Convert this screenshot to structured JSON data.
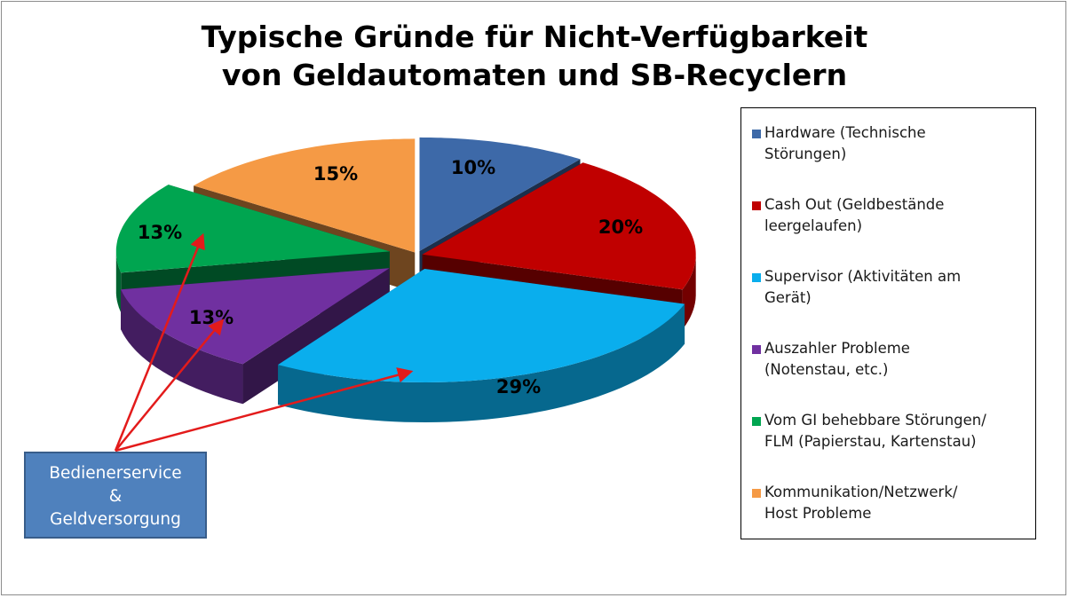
{
  "title": {
    "line1": "Typische Gründe für Nicht-Verfügbarkeit",
    "line2": "von Geldautomaten und SB-Recyclern"
  },
  "chart_data": {
    "type": "pie",
    "title": "Typische Gründe für Nicht-Verfügbarkeit von Geldautomaten und SB-Recyclern",
    "style": "3d-exploded",
    "legend_position": "right",
    "unit": "%",
    "slices": [
      {
        "label": "Hardware (Technische Störungen)",
        "legend_line1": "Hardware (Technische",
        "legend_line2": "Störungen)",
        "value": 10,
        "value_label": "10%",
        "color": "#3d69a8"
      },
      {
        "label": "Cash Out (Geldbestände leergelaufen)",
        "legend_line1": "Cash Out (Geldbestände",
        "legend_line2": "leergelaufen)",
        "value": 20,
        "value_label": "20%",
        "color": "#c00000"
      },
      {
        "label": "Supervisor (Aktivitäten am Gerät)",
        "legend_line1": "Supervisor (Aktivitäten am",
        "legend_line2": "Gerät)",
        "value": 29,
        "value_label": "29%",
        "color": "#0aaeed"
      },
      {
        "label": "Auszahler Probleme (Notenstau, etc.)",
        "legend_line1": "Auszahler Probleme",
        "legend_line2": "(Notenstau, etc.)",
        "value": 13,
        "value_label": "13%",
        "color": "#7030a0"
      },
      {
        "label": "Vom GI behebbare Störungen/ FLM (Papierstau, Kartenstau)",
        "legend_line1": "Vom GI behebbare Störungen/",
        "legend_line2": "FLM (Papierstau, Kartenstau)",
        "value": 13,
        "value_label": "13%",
        "color": "#00a550"
      },
      {
        "label": "Kommunikation/Netzwerk/ Host Probleme",
        "legend_line1": "Kommunikation/Netzwerk/",
        "legend_line2": "Host Probleme",
        "value": 15,
        "value_label": "15%",
        "color": "#f59a45"
      }
    ]
  },
  "callout": {
    "line1": "Bedienerservice",
    "line2": "&",
    "line3": "Geldversorgung",
    "box_color": "#4f81bd",
    "arrow_color": "#e31b1b",
    "targets": [
      "Supervisor (Aktivitäten am Gerät)",
      "Auszahler Probleme (Notenstau, etc.)",
      "Vom GI behebbare Störungen/ FLM (Papierstau, Kartenstau)"
    ]
  }
}
